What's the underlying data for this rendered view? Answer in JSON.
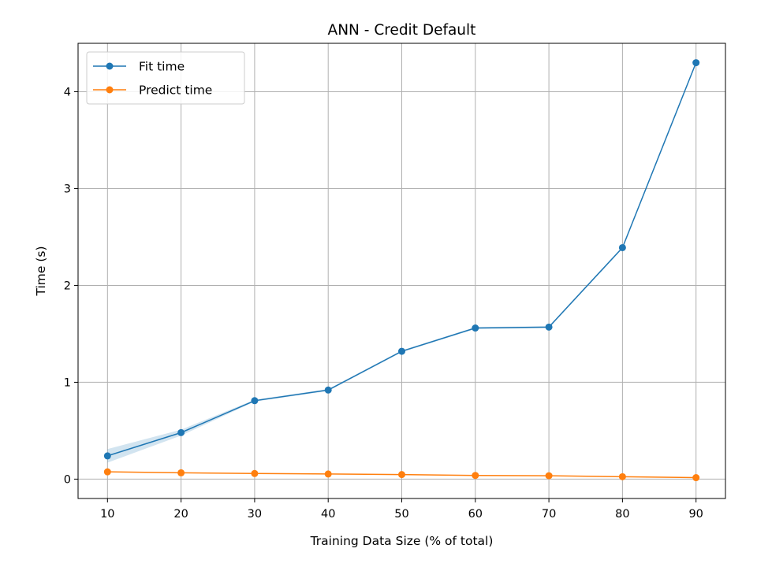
{
  "chart_data": {
    "type": "line",
    "title": "ANN - Credit Default",
    "xlabel": "Training Data Size (% of total)",
    "ylabel": "Time (s)",
    "x": [
      10,
      20,
      30,
      40,
      50,
      60,
      70,
      80,
      90
    ],
    "xticks": [
      "10",
      "20",
      "30",
      "40",
      "50",
      "60",
      "70",
      "80",
      "90"
    ],
    "yticks": [
      "0",
      "1",
      "2",
      "3",
      "4"
    ],
    "xlim": [
      6,
      94
    ],
    "ylim": [
      -0.2,
      4.5
    ],
    "grid": true,
    "legend_position": "upper-left",
    "series": [
      {
        "name": "Fit time",
        "color": "#1f77b4",
        "values": [
          0.24,
          0.48,
          0.81,
          0.92,
          1.32,
          1.56,
          1.57,
          2.39,
          4.3
        ],
        "band_lower": [
          0.17,
          0.45,
          0.8,
          0.91,
          1.31,
          1.55,
          1.56,
          2.38,
          4.29
        ],
        "band_upper": [
          0.31,
          0.51,
          0.82,
          0.93,
          1.33,
          1.57,
          1.58,
          2.4,
          4.31
        ]
      },
      {
        "name": "Predict time",
        "color": "#ff7f0e",
        "values": [
          0.075,
          0.065,
          0.058,
          0.053,
          0.047,
          0.038,
          0.035,
          0.025,
          0.015
        ]
      }
    ]
  }
}
